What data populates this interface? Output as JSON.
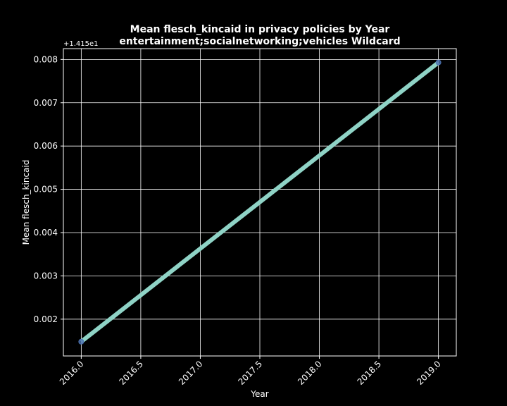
{
  "chart_data": {
    "type": "line",
    "title_line1": "Mean flesch_kincaid in privacy policies by Year",
    "title_line2": "entertainment;socialnetworking;vehicles Wildcard",
    "xlabel": "Year",
    "ylabel": "Mean flesch_kincaid",
    "y_offset_label": "+1.415e1",
    "x_ticks": [
      2016.0,
      2016.5,
      2017.0,
      2017.5,
      2018.0,
      2018.5,
      2019.0
    ],
    "x_tick_labels": [
      "2016.0",
      "2016.5",
      "2017.0",
      "2017.5",
      "2018.0",
      "2018.5",
      "2019.0"
    ],
    "y_ticks": [
      0.002,
      0.003,
      0.004,
      0.005,
      0.006,
      0.007,
      0.008
    ],
    "y_tick_labels": [
      "0.002",
      "0.003",
      "0.004",
      "0.005",
      "0.006",
      "0.007",
      "0.008"
    ],
    "xlim": [
      2015.85,
      2019.15
    ],
    "ylim": [
      0.00115,
      0.00825
    ],
    "grid": true,
    "series": [
      {
        "x": [
          2016,
          2019
        ],
        "y": [
          0.00148,
          0.00793
        ],
        "color": "#8fd3c6",
        "marker_color": "#4c72b0"
      }
    ]
  },
  "colors": {
    "background": "#000000",
    "axes": "#ffffff",
    "grid": "#ffffff",
    "line": "#8fd3c6"
  }
}
